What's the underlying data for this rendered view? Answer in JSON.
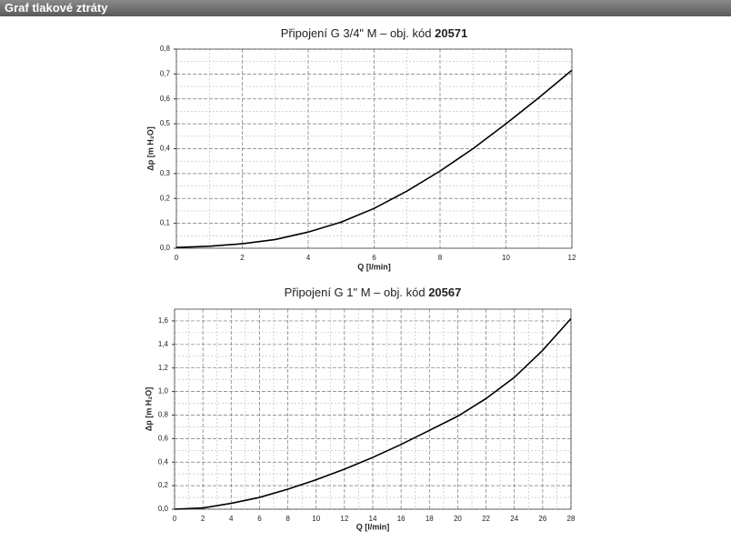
{
  "header": {
    "title": "Graf tlakové ztráty"
  },
  "chart_data": [
    {
      "type": "line",
      "title": "Připojení G 3/4\" M – obj. kód",
      "title_code": "20571",
      "x_label": "Q [l/min]",
      "y_label": "Δp [m H₂O]",
      "x": [
        0,
        1,
        2,
        3,
        4,
        5,
        6,
        7,
        8,
        9,
        10,
        11,
        12
      ],
      "series": [
        {
          "name": "Δp",
          "color": "#000000",
          "values": [
            0.003,
            0.008,
            0.018,
            0.035,
            0.065,
            0.105,
            0.16,
            0.23,
            0.31,
            0.4,
            0.5,
            0.605,
            0.715
          ]
        }
      ],
      "xlim": [
        0,
        12
      ],
      "xticks": [
        0,
        2,
        4,
        6,
        8,
        10,
        12
      ],
      "ylim": [
        0,
        0.8
      ],
      "yticks": [
        {
          "value": 0,
          "label": "0,0"
        },
        {
          "value": 0.1,
          "label": "0,1"
        },
        {
          "value": 0.2,
          "label": "0,2"
        },
        {
          "value": 0.3,
          "label": "0,3"
        },
        {
          "value": 0.4,
          "label": "0,4"
        },
        {
          "value": 0.5,
          "label": "0,5"
        },
        {
          "value": 0.6,
          "label": "0,6"
        },
        {
          "value": 0.7,
          "label": "0,7"
        },
        {
          "value": 0.8,
          "label": "0,8"
        }
      ],
      "grid": true
    },
    {
      "type": "line",
      "title": "Připojení G 1\" M – obj. kód",
      "title_code": "20567",
      "x_label": "Q [l/min]",
      "y_label": "Δp [m H₂O]",
      "x": [
        0,
        2,
        4,
        6,
        8,
        10,
        12,
        14,
        16,
        18,
        20,
        22,
        24,
        26,
        28
      ],
      "series": [
        {
          "name": "Δp",
          "color": "#000000",
          "values": [
            0.0,
            0.01,
            0.05,
            0.1,
            0.17,
            0.25,
            0.34,
            0.44,
            0.55,
            0.67,
            0.79,
            0.94,
            1.12,
            1.35,
            1.62
          ]
        }
      ],
      "xlim": [
        0,
        28
      ],
      "xticks": [
        0,
        2,
        4,
        6,
        8,
        10,
        12,
        14,
        16,
        18,
        20,
        22,
        24,
        26,
        28
      ],
      "ylim": [
        0,
        1.7
      ],
      "yticks": [
        {
          "value": 0,
          "label": "0,0"
        },
        {
          "value": 0.2,
          "label": "0,2"
        },
        {
          "value": 0.4,
          "label": "0,4"
        },
        {
          "value": 0.6,
          "label": "0,6"
        },
        {
          "value": 0.8,
          "label": "0,8"
        },
        {
          "value": 1.0,
          "label": "1,0"
        },
        {
          "value": 1.2,
          "label": "1,2"
        },
        {
          "value": 1.4,
          "label": "1,4"
        },
        {
          "value": 1.6,
          "label": "1,6"
        }
      ],
      "grid": true
    }
  ]
}
